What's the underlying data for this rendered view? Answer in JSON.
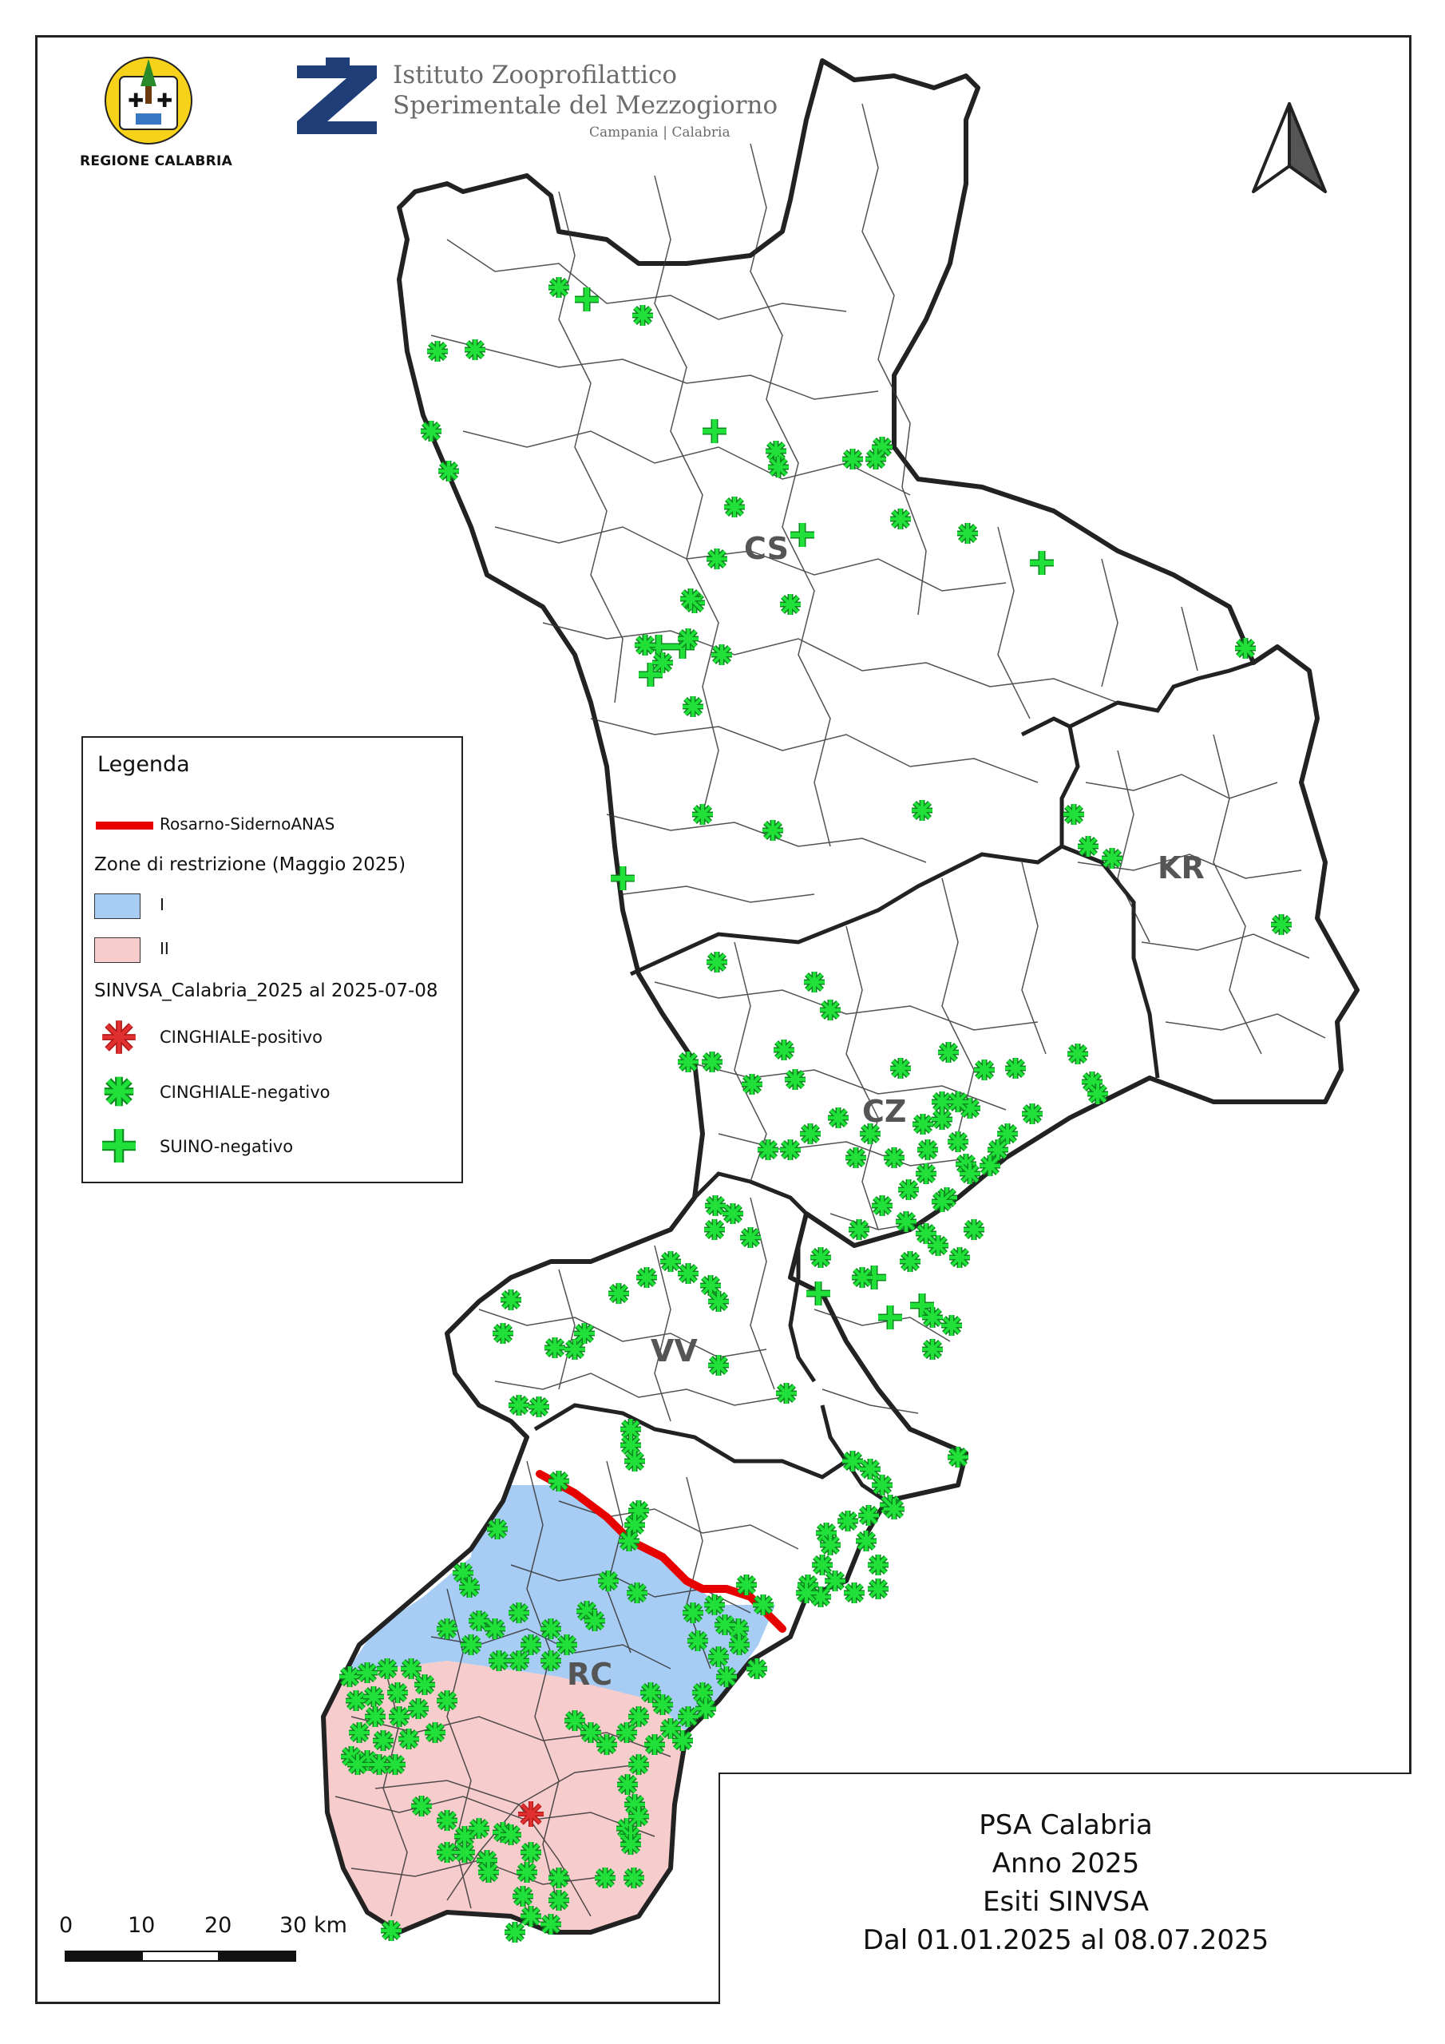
{
  "header": {
    "region_logo_label": "REGIONE CALABRIA",
    "institute_name_line1": "Istituto Zooprofilattico",
    "institute_name_line2": "Sperimentale del Mezzogiorno",
    "institute_regions": "Campania | Calabria"
  },
  "legend": {
    "title": "Legenda",
    "road_label": "Rosarno-SidernoANAS",
    "zones_title": "Zone di restrizione (Maggio 2025)",
    "zone_1_label": "I",
    "zone_2_label": "II",
    "samples_title": "SINVSA_Calabria_2025 al 2025-07-08",
    "positive_label": "CINGHIALE-positivo",
    "negative_label": "CINGHIALE-negativo",
    "pig_label": "SUINO-negativo"
  },
  "provinces": {
    "cs": "CS",
    "kr": "KR",
    "cz": "CZ",
    "vv": "VV",
    "rc": "RC"
  },
  "title_box": {
    "line1": "PSA Calabria",
    "line2": "Anno 2025",
    "line3": "Esiti SINVSA",
    "line4": "Dal 01.01.2025 al 08.07.2025"
  },
  "scale_bar": {
    "labels": [
      "0",
      "10",
      "20",
      "30 km"
    ]
  },
  "colors": {
    "zone_1": "#a8cdf5",
    "zone_2": "#f6cccc",
    "road": "#e60000",
    "positive": "#e03030",
    "negative": "#22e03a",
    "border": "#222222"
  },
  "icons": {
    "north_arrow": "north-arrow-icon",
    "region_logo": "regione-calabria-logo",
    "institute_logo": "izs-logo"
  }
}
